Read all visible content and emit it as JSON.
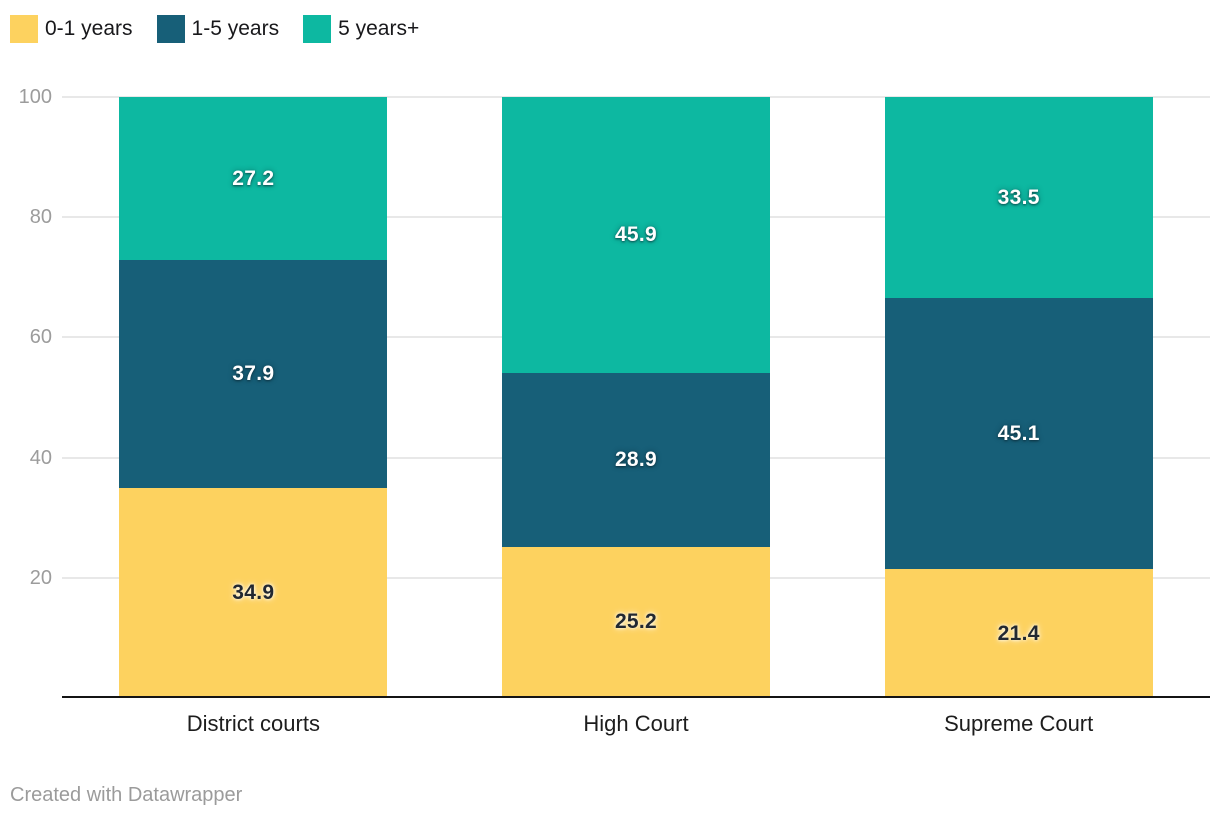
{
  "legend": {
    "items": [
      {
        "label": "0-1 years",
        "color": "#fdd25f"
      },
      {
        "label": "1-5 years",
        "color": "#175f78"
      },
      {
        "label": "5 years+",
        "color": "#0db8a1"
      }
    ]
  },
  "footer": {
    "credit": "Created with Datawrapper"
  },
  "chart_data": {
    "type": "bar",
    "stacked": true,
    "title": "",
    "xlabel": "",
    "ylabel": "",
    "categories": [
      "District courts",
      "High Court",
      "Supreme Court"
    ],
    "series": [
      {
        "name": "0-1 years",
        "color": "#fdd25f",
        "label_style": "dark",
        "values": [
          34.9,
          25.2,
          21.4
        ]
      },
      {
        "name": "1-5 years",
        "color": "#175f78",
        "label_style": "light",
        "values": [
          37.9,
          28.9,
          45.1
        ]
      },
      {
        "name": "5 years+",
        "color": "#0db8a1",
        "label_style": "light",
        "values": [
          27.2,
          45.9,
          33.5
        ]
      }
    ],
    "ylim": [
      0,
      100
    ],
    "yticks": [
      20,
      40,
      60,
      80,
      100
    ],
    "grid": true,
    "legend_position": "top-left",
    "axis_colors": {
      "tick_label": "#9c9c9c",
      "gridline": "#e8e8e8",
      "baseline": "#141414",
      "category_label": "#1d1d1d"
    }
  }
}
